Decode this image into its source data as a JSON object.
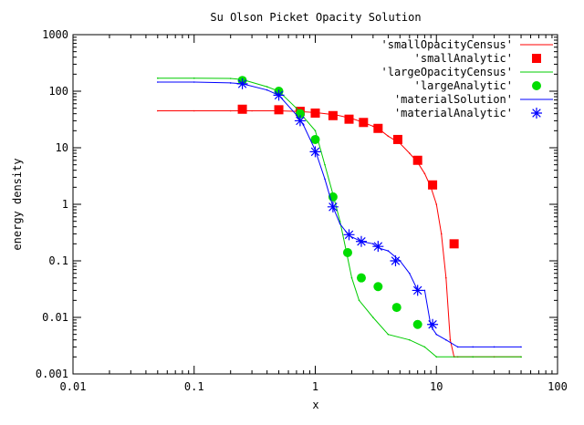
{
  "chart_data": {
    "type": "line",
    "title": "Su Olson Picket Opacity Solution",
    "xlabel": "x",
    "ylabel": "energy density",
    "xscale": "log",
    "yscale": "log",
    "xlim": [
      0.01,
      100
    ],
    "ylim": [
      0.001,
      1000
    ],
    "grid": false,
    "legend_position": "top-right",
    "x_ticks": [
      {
        "value": 0.01,
        "label": "0.01"
      },
      {
        "value": 0.1,
        "label": "0.1"
      },
      {
        "value": 1,
        "label": "1"
      },
      {
        "value": 10,
        "label": "10"
      },
      {
        "value": 100,
        "label": "100"
      }
    ],
    "y_ticks": [
      {
        "value": 0.001,
        "label": "0.001"
      },
      {
        "value": 0.01,
        "label": "0.01"
      },
      {
        "value": 0.1,
        "label": "0.1"
      },
      {
        "value": 1,
        "label": "1"
      },
      {
        "value": 10,
        "label": "10"
      },
      {
        "value": 100,
        "label": "100"
      },
      {
        "value": 1000,
        "label": "1000"
      }
    ],
    "series": [
      {
        "name": "'smallOpacityCensus'",
        "style": "line",
        "color": "#ff0000",
        "x": [
          0.05,
          0.1,
          0.2,
          0.3,
          0.5,
          0.7,
          1.0,
          1.5,
          2.0,
          2.5,
          3.0,
          3.5,
          4.0,
          5.0,
          6.0,
          7.0,
          8.0,
          9.0,
          10.0,
          11.0,
          12.0,
          13.0,
          14.0,
          15.0,
          20.0,
          30.0,
          50.0
        ],
        "y": [
          45,
          45,
          45,
          45,
          45,
          44,
          42,
          38,
          33,
          28,
          24,
          20,
          16,
          12,
          8,
          5.5,
          3.5,
          2.0,
          1.0,
          0.3,
          0.05,
          0.004,
          0.002,
          0.002,
          0.002,
          0.002,
          0.002
        ]
      },
      {
        "name": "'smallAnalytic'",
        "style": "square",
        "color": "#ff0000",
        "x": [
          0.25,
          0.5,
          0.75,
          1.0,
          1.4,
          1.9,
          2.5,
          3.3,
          4.8,
          7.0,
          9.3,
          14.0
        ],
        "y": [
          48,
          47,
          44,
          41,
          37,
          32,
          28,
          22,
          14,
          6.0,
          2.2,
          0.2
        ]
      },
      {
        "name": "'largeOpacityCensus'",
        "style": "line",
        "color": "#00cc00",
        "x": [
          0.05,
          0.1,
          0.2,
          0.25,
          0.4,
          0.5,
          0.7,
          0.8,
          1.0,
          1.2,
          1.4,
          1.6,
          1.8,
          2.0,
          2.3,
          3.0,
          4.0,
          6.0,
          8.0,
          10.0,
          20.0,
          50.0
        ],
        "y": [
          170,
          170,
          168,
          160,
          120,
          100,
          50,
          35,
          20,
          5.0,
          1.5,
          0.5,
          0.15,
          0.05,
          0.02,
          0.01,
          0.005,
          0.004,
          0.003,
          0.002,
          0.002,
          0.002
        ]
      },
      {
        "name": "'largeAnalytic'",
        "style": "circle",
        "color": "#00dd00",
        "x": [
          0.25,
          0.5,
          0.75,
          1.0,
          1.4,
          1.85,
          2.4,
          3.3,
          4.7,
          7.0
        ],
        "y": [
          155,
          100,
          40,
          14,
          1.35,
          0.14,
          0.05,
          0.035,
          0.015,
          0.0075
        ]
      },
      {
        "name": "'materialSolution'",
        "style": "line",
        "color": "#0000ff",
        "x": [
          0.05,
          0.1,
          0.2,
          0.25,
          0.4,
          0.5,
          0.7,
          0.8,
          1.0,
          1.2,
          1.4,
          1.6,
          1.9,
          2.4,
          3.0,
          3.3,
          4.0,
          5.0,
          6.0,
          7.0,
          8.0,
          9.0,
          10.0,
          12.0,
          15.0,
          20.0,
          30.0,
          50.0
        ],
        "y": [
          145,
          145,
          140,
          135,
          105,
          85,
          38,
          25,
          9.0,
          2.8,
          0.9,
          0.45,
          0.28,
          0.22,
          0.2,
          0.17,
          0.15,
          0.1,
          0.06,
          0.03,
          0.03,
          0.007,
          0.005,
          0.004,
          0.003,
          0.003,
          0.003,
          0.003
        ]
      },
      {
        "name": "'materialAnalytic'",
        "style": "asterisk",
        "color": "#0000ff",
        "x": [
          0.25,
          0.5,
          0.75,
          1.0,
          1.4,
          1.9,
          2.4,
          3.3,
          4.6,
          7.0,
          9.3
        ],
        "y": [
          135,
          85,
          30,
          8.5,
          0.9,
          0.29,
          0.22,
          0.18,
          0.1,
          0.03,
          0.0075
        ]
      }
    ]
  }
}
